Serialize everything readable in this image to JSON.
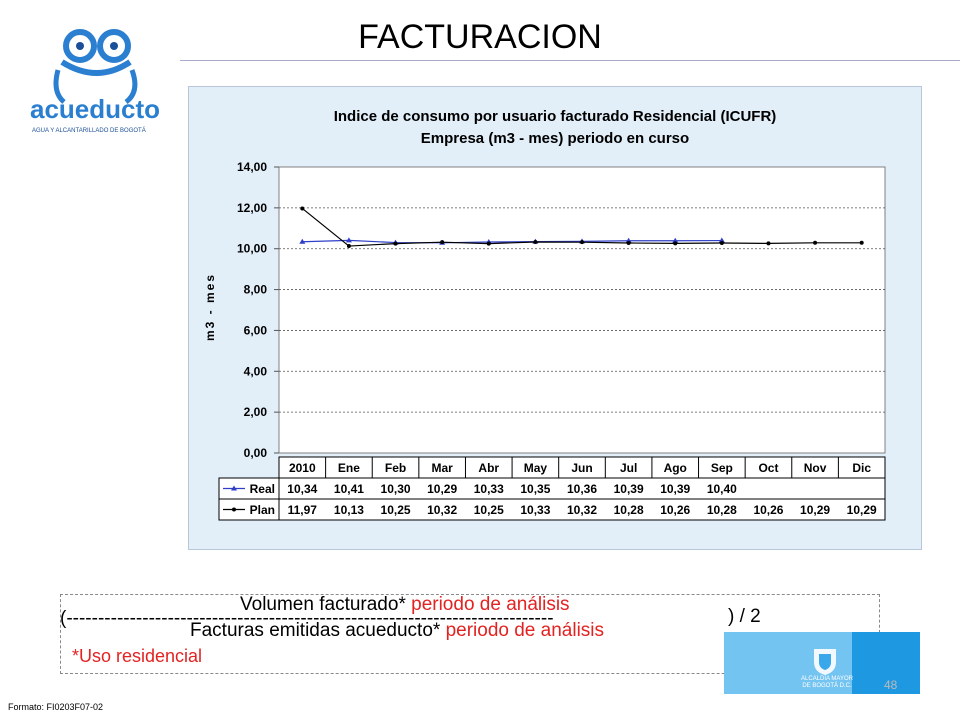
{
  "slide": {
    "title": "FACTURACION",
    "page_number": "48",
    "format_code": "Formato: FI0203F07-02"
  },
  "logo": {
    "name": "acueducto",
    "tagline": "AGUA Y ALCANTARILLADO DE BOGOTÁ",
    "icon": "frog-logo-icon"
  },
  "formula": {
    "open": "(",
    "dashes": "-----------------------------------------------------------------------------",
    "close": ") / 2",
    "numerator_black": "Volumen facturado*",
    "numerator_red": " periodo de análisis",
    "denominator_black": "Facturas emitidas acueducto*",
    "denominator_red": " periodo de análisis",
    "footnote": "*Uso residencial"
  },
  "crest": {
    "text_line1": "ALCALDÍA MAYOR",
    "text_line2": "DE BOGOTÁ D.C.",
    "icon": "bogota-crest-icon"
  },
  "colors": {
    "real": "#2f3fc8",
    "plan": "#000000",
    "panel": "#e2eef8",
    "footnote": "#e32222",
    "crest_bg": "#3aa7ea"
  },
  "chart_data": {
    "type": "line",
    "title": "Indice de consumo por usuario facturado Residencial (ICUFR)",
    "subtitle": "Empresa (m3 - mes) periodo en curso",
    "xlabel": "",
    "ylabel": "m3 - mes",
    "ylim": [
      0,
      14
    ],
    "yticks": [
      "0,00",
      "2,00",
      "4,00",
      "6,00",
      "8,00",
      "10,00",
      "12,00",
      "14,00"
    ],
    "grid": true,
    "categories": [
      "2010",
      "Ene",
      "Feb",
      "Mar",
      "Abr",
      "May",
      "Jun",
      "Jul",
      "Ago",
      "Sep",
      "Oct",
      "Nov",
      "Dic"
    ],
    "series": [
      {
        "name": "Real",
        "values": [
          10.34,
          10.41,
          10.3,
          10.29,
          10.33,
          10.35,
          10.36,
          10.39,
          10.39,
          10.4,
          null,
          null,
          null
        ],
        "labels": [
          "10,34",
          "10,41",
          "10,30",
          "10,29",
          "10,33",
          "10,35",
          "10,36",
          "10,39",
          "10,39",
          "10,40",
          "",
          "",
          ""
        ]
      },
      {
        "name": "Plan",
        "values": [
          11.97,
          10.13,
          10.25,
          10.32,
          10.25,
          10.33,
          10.32,
          10.28,
          10.26,
          10.28,
          10.26,
          10.29,
          10.29
        ],
        "labels": [
          "11,97",
          "10,13",
          "10,25",
          "10,32",
          "10,25",
          "10,33",
          "10,32",
          "10,28",
          "10,26",
          "10,28",
          "10,26",
          "10,29",
          "10,29"
        ]
      }
    ],
    "legend": "data-table"
  }
}
